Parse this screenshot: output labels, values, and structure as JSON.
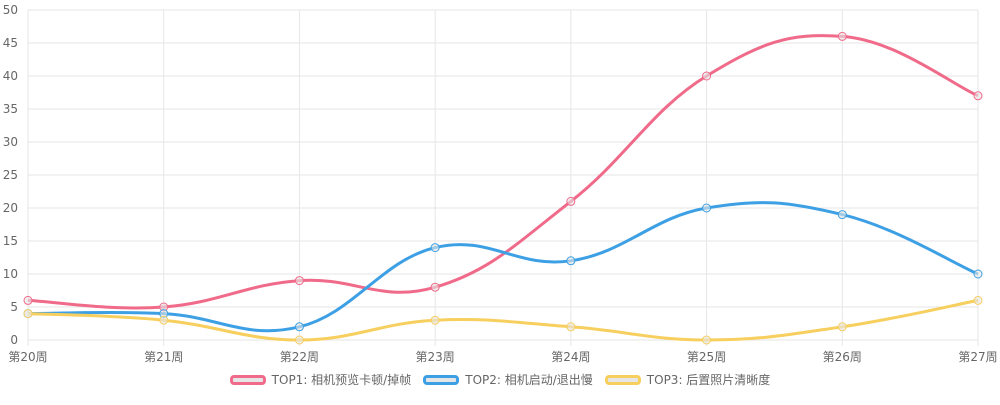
{
  "chart_data": {
    "type": "line",
    "categories": [
      "第20周",
      "第21周",
      "第22周",
      "第23周",
      "第24周",
      "第25周",
      "第26周",
      "第27周"
    ],
    "series": [
      {
        "name": "TOP1: 相机预览卡顿/掉帧",
        "color": "#f06a8a",
        "values": [
          6,
          5,
          9,
          8,
          21,
          40,
          46,
          37
        ]
      },
      {
        "name": "TOP2: 相机启动/退出慢",
        "color": "#3ea0e4",
        "values": [
          4,
          4,
          2,
          14,
          12,
          20,
          19,
          10
        ]
      },
      {
        "name": "TOP3: 后置照片清晰度",
        "color": "#f7cf5f",
        "values": [
          4,
          3,
          0,
          3,
          2,
          0,
          2,
          6
        ]
      }
    ],
    "yticks": [
      0,
      5,
      10,
      15,
      20,
      25,
      30,
      35,
      40,
      45,
      50
    ],
    "ylim": [
      0,
      50
    ],
    "grid": true,
    "legend_position": "bottom"
  }
}
